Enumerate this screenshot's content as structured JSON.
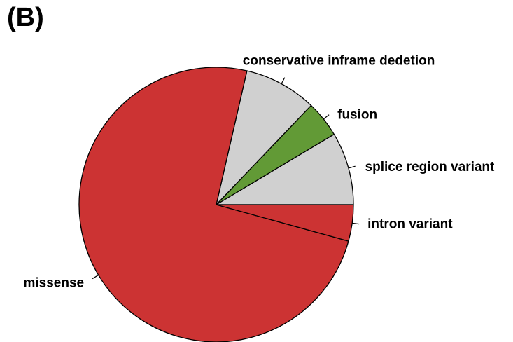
{
  "panel_label": "(B)",
  "chart_data": {
    "type": "pie",
    "title": "",
    "start_angle_deg": 0,
    "direction": "counterclockwise",
    "slices": [
      {
        "label": "splice region variant",
        "value": 6.2,
        "color": "#d0d0d0"
      },
      {
        "label": "fusion",
        "value": 3.1,
        "color": "#629a36"
      },
      {
        "label": "conservative inframe dedetion",
        "value": 6.2,
        "color": "#d0d0d0"
      },
      {
        "label": "missense",
        "value": 53.8,
        "color": "#cc3333"
      },
      {
        "label": "intron variant",
        "value": 3.1,
        "color": "#cc3333"
      }
    ]
  }
}
